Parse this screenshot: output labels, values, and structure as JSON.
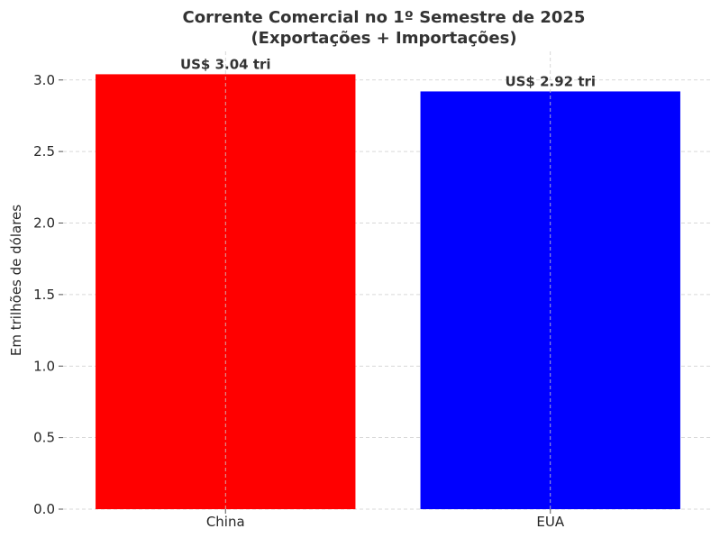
{
  "chart_data": {
    "type": "bar",
    "title": "Corrente Comercial no 1º Semestre de 2025",
    "subtitle": "(Exportações + Importações)",
    "xlabel": "",
    "ylabel": "Em trilhões de dólares",
    "categories": [
      "China",
      "EUA"
    ],
    "values": [
      3.04,
      2.92
    ],
    "colors": [
      "#ff0000",
      "#0000ff"
    ],
    "data_labels": [
      "US$ 3.04 tri",
      "US$ 2.92 tri"
    ],
    "ylim": [
      0,
      3.2
    ],
    "yticks": [
      0.0,
      0.5,
      1.0,
      1.5,
      2.0,
      2.5,
      3.0
    ],
    "ytick_labels": [
      "0.0",
      "0.5",
      "1.0",
      "1.5",
      "2.0",
      "2.5",
      "3.0"
    ],
    "grid": true,
    "legend": "none"
  }
}
